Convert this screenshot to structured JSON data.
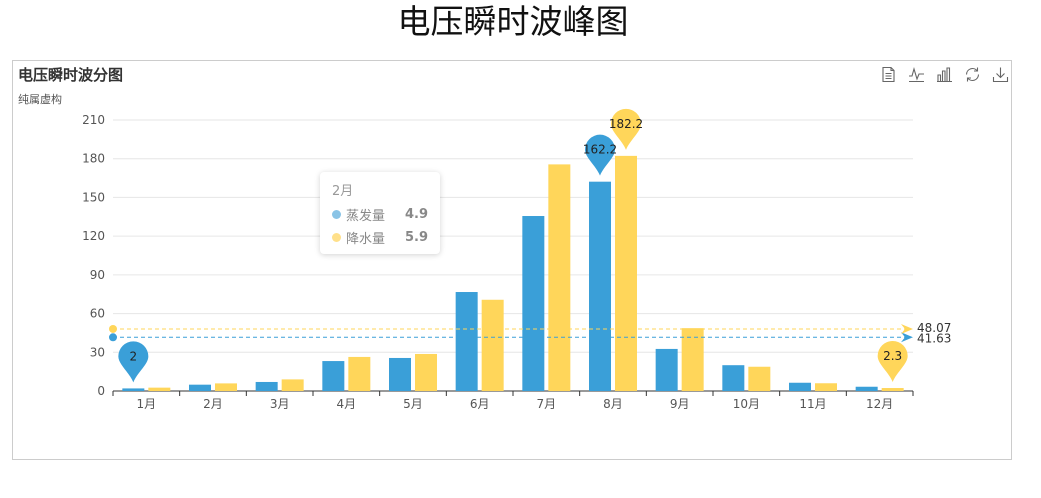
{
  "page": {
    "title": "电压瞬时波峰图"
  },
  "toolbox": {
    "icons": [
      "data-view-icon",
      "line-chart-icon",
      "bar-chart-icon",
      "restore-icon",
      "download-icon"
    ]
  },
  "colors": {
    "evap": "#3a9fd8",
    "rain": "#ffd65a",
    "grid": "#e6e6e6",
    "axis": "#333333"
  },
  "tooltip": {
    "title": "2月",
    "rows": [
      {
        "name": "蒸发量",
        "value": "4.9"
      },
      {
        "name": "降水量",
        "value": "5.9"
      }
    ]
  },
  "chart_data": {
    "type": "bar",
    "title": "电压瞬时波分图",
    "subtitle": "纯属虚构",
    "categories": [
      "1月",
      "2月",
      "3月",
      "4月",
      "5月",
      "6月",
      "7月",
      "8月",
      "9月",
      "10月",
      "11月",
      "12月"
    ],
    "series": [
      {
        "name": "蒸发量",
        "color": "#3a9fd8",
        "values": [
          2.0,
          4.9,
          7.0,
          23.2,
          25.6,
          76.7,
          135.6,
          162.2,
          32.6,
          20.0,
          6.4,
          3.3
        ]
      },
      {
        "name": "降水量",
        "color": "#ffd65a",
        "values": [
          2.6,
          5.9,
          9.0,
          26.4,
          28.7,
          70.7,
          175.6,
          182.2,
          48.7,
          18.8,
          6.0,
          2.3
        ]
      }
    ],
    "ylim": [
      0,
      210
    ],
    "yticks": [
      0,
      30,
      60,
      90,
      120,
      150,
      180,
      210
    ],
    "markPoints": [
      {
        "series": 0,
        "category": 7,
        "label": "162.2",
        "kind": "max"
      },
      {
        "series": 0,
        "category": 0,
        "label": "2",
        "kind": "min"
      },
      {
        "series": 1,
        "category": 7,
        "label": "182.2",
        "kind": "max"
      },
      {
        "series": 1,
        "category": 11,
        "label": "2.3",
        "kind": "min"
      }
    ],
    "markLines": [
      {
        "series": 0,
        "value": 41.63,
        "label": "41.63"
      },
      {
        "series": 1,
        "value": 48.07,
        "label": "48.07"
      }
    ],
    "grid": true,
    "legend": "none"
  }
}
